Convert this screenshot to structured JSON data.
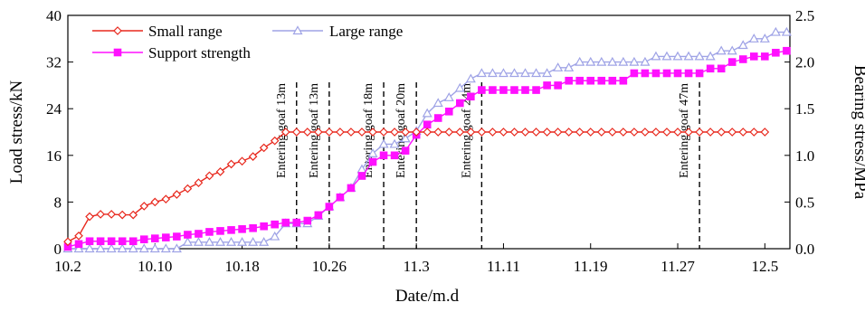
{
  "chart_data": {
    "type": "line",
    "xlabel": "Date/m.d",
    "ylabel_left": "Load stress/kN",
    "ylabel_right": "Bearing stress/MPa",
    "x_start": "10.2",
    "x_end": "12.5",
    "x_tick_labels": [
      "10.2",
      "10.10",
      "10.18",
      "10.26",
      "11.3",
      "11.11",
      "11.19",
      "11.27",
      "12.5"
    ],
    "x_tick_days": [
      0,
      8,
      16,
      24,
      32,
      40,
      48,
      56,
      64
    ],
    "ylim_left": [
      0,
      40
    ],
    "yticks_left": [
      "0",
      "8",
      "16",
      "24",
      "32",
      "40"
    ],
    "ylim_right": [
      0,
      2.5
    ],
    "yticks_right": [
      "0.0",
      "0.5",
      "1.0",
      "1.5",
      "2.0",
      "2.5"
    ],
    "grid": false,
    "legend_position": "top-left",
    "series": [
      {
        "name": "Small range",
        "axis": "left",
        "color": "#e8291e",
        "marker": "diamond-open",
        "points": [
          [
            0,
            1.2
          ],
          [
            1,
            2.2
          ],
          [
            2,
            5.5
          ],
          [
            3,
            5.9
          ],
          [
            4,
            5.9
          ],
          [
            5,
            5.8
          ],
          [
            6,
            5.8
          ],
          [
            7,
            7.3
          ],
          [
            8,
            8.0
          ],
          [
            9,
            8.5
          ],
          [
            10,
            9.3
          ],
          [
            11,
            10.3
          ],
          [
            12,
            11.3
          ],
          [
            13,
            12.5
          ],
          [
            14,
            13.2
          ],
          [
            15,
            14.5
          ],
          [
            16,
            15.0
          ],
          [
            17,
            15.8
          ],
          [
            18,
            17.3
          ],
          [
            19,
            18.5
          ],
          [
            20,
            20
          ],
          [
            21,
            20
          ],
          [
            22,
            20
          ],
          [
            23,
            20
          ],
          [
            24,
            20
          ],
          [
            25,
            20
          ],
          [
            26,
            20
          ],
          [
            27,
            20
          ],
          [
            28,
            20
          ],
          [
            29,
            20
          ],
          [
            30,
            20
          ],
          [
            31,
            20
          ],
          [
            32,
            20
          ],
          [
            33,
            20
          ],
          [
            34,
            20
          ],
          [
            35,
            20
          ],
          [
            36,
            20
          ],
          [
            37,
            20
          ],
          [
            38,
            20
          ],
          [
            39,
            20
          ],
          [
            40,
            20
          ],
          [
            41,
            20
          ],
          [
            42,
            20
          ],
          [
            43,
            20
          ],
          [
            44,
            20
          ],
          [
            45,
            20
          ],
          [
            46,
            20
          ],
          [
            47,
            20
          ],
          [
            48,
            20
          ],
          [
            49,
            20
          ],
          [
            50,
            20
          ],
          [
            51,
            20
          ],
          [
            52,
            20
          ],
          [
            53,
            20
          ],
          [
            54,
            20
          ],
          [
            55,
            20
          ],
          [
            56,
            20
          ],
          [
            57,
            20
          ],
          [
            58,
            20
          ],
          [
            59,
            20
          ],
          [
            60,
            20
          ],
          [
            61,
            20
          ],
          [
            62,
            20
          ],
          [
            63,
            20
          ],
          [
            64,
            20
          ]
        ]
      },
      {
        "name": "Large range",
        "axis": "right",
        "color": "#9fa3e6",
        "marker": "triangle-open",
        "points": [
          [
            0,
            0.0
          ],
          [
            1,
            0.0
          ],
          [
            2,
            0.0
          ],
          [
            3,
            0.0
          ],
          [
            4,
            0.0
          ],
          [
            5,
            0.0
          ],
          [
            6,
            0.0
          ],
          [
            7,
            0.0
          ],
          [
            8,
            0.0
          ],
          [
            9,
            0.0
          ],
          [
            10,
            0.0
          ],
          [
            11,
            0.07
          ],
          [
            12,
            0.07
          ],
          [
            13,
            0.07
          ],
          [
            14,
            0.07
          ],
          [
            15,
            0.07
          ],
          [
            16,
            0.07
          ],
          [
            17,
            0.07
          ],
          [
            18,
            0.07
          ],
          [
            19,
            0.13
          ],
          [
            20,
            0.27
          ],
          [
            21,
            0.27
          ],
          [
            22,
            0.27
          ],
          [
            23,
            0.35
          ],
          [
            24,
            0.45
          ],
          [
            25,
            0.55
          ],
          [
            26,
            0.65
          ],
          [
            27,
            0.85
          ],
          [
            28,
            1.02
          ],
          [
            29,
            1.12
          ],
          [
            30,
            1.12
          ],
          [
            31,
            1.18
          ],
          [
            32,
            1.26
          ],
          [
            33,
            1.45
          ],
          [
            34,
            1.56
          ],
          [
            35,
            1.62
          ],
          [
            36,
            1.72
          ],
          [
            37,
            1.82
          ],
          [
            38,
            1.88
          ],
          [
            39,
            1.88
          ],
          [
            40,
            1.88
          ],
          [
            41,
            1.88
          ],
          [
            42,
            1.88
          ],
          [
            43,
            1.88
          ],
          [
            44,
            1.88
          ],
          [
            45,
            1.94
          ],
          [
            46,
            1.94
          ],
          [
            47,
            2.0
          ],
          [
            48,
            2.0
          ],
          [
            49,
            2.0
          ],
          [
            50,
            2.0
          ],
          [
            51,
            2.0
          ],
          [
            52,
            2.0
          ],
          [
            53,
            2.0
          ],
          [
            54,
            2.06
          ],
          [
            55,
            2.06
          ],
          [
            56,
            2.06
          ],
          [
            57,
            2.06
          ],
          [
            58,
            2.06
          ],
          [
            59,
            2.06
          ],
          [
            60,
            2.12
          ],
          [
            61,
            2.12
          ],
          [
            62,
            2.18
          ],
          [
            63,
            2.25
          ],
          [
            64,
            2.25
          ],
          [
            65,
            2.32
          ],
          [
            66,
            2.32
          ]
        ]
      },
      {
        "name": "Support strength",
        "axis": "right",
        "color": "#ff10ff",
        "marker": "square-filled",
        "points": [
          [
            0,
            0.02
          ],
          [
            1,
            0.05
          ],
          [
            2,
            0.08
          ],
          [
            3,
            0.08
          ],
          [
            4,
            0.08
          ],
          [
            5,
            0.08
          ],
          [
            6,
            0.08
          ],
          [
            7,
            0.1
          ],
          [
            8,
            0.11
          ],
          [
            9,
            0.12
          ],
          [
            10,
            0.13
          ],
          [
            11,
            0.15
          ],
          [
            12,
            0.16
          ],
          [
            13,
            0.18
          ],
          [
            14,
            0.19
          ],
          [
            15,
            0.2
          ],
          [
            16,
            0.21
          ],
          [
            17,
            0.22
          ],
          [
            18,
            0.24
          ],
          [
            19,
            0.26
          ],
          [
            20,
            0.28
          ],
          [
            21,
            0.28
          ],
          [
            22,
            0.3
          ],
          [
            23,
            0.36
          ],
          [
            24,
            0.45
          ],
          [
            25,
            0.55
          ],
          [
            26,
            0.65
          ],
          [
            27,
            0.78
          ],
          [
            28,
            0.93
          ],
          [
            29,
            1.0
          ],
          [
            30,
            1.0
          ],
          [
            31,
            1.05
          ],
          [
            32,
            1.22
          ],
          [
            33,
            1.33
          ],
          [
            34,
            1.4
          ],
          [
            35,
            1.47
          ],
          [
            36,
            1.56
          ],
          [
            37,
            1.63
          ],
          [
            38,
            1.7
          ],
          [
            39,
            1.7
          ],
          [
            40,
            1.7
          ],
          [
            41,
            1.7
          ],
          [
            42,
            1.7
          ],
          [
            43,
            1.7
          ],
          [
            44,
            1.75
          ],
          [
            45,
            1.75
          ],
          [
            46,
            1.8
          ],
          [
            47,
            1.8
          ],
          [
            48,
            1.8
          ],
          [
            49,
            1.8
          ],
          [
            50,
            1.8
          ],
          [
            51,
            1.8
          ],
          [
            52,
            1.88
          ],
          [
            53,
            1.88
          ],
          [
            54,
            1.88
          ],
          [
            55,
            1.88
          ],
          [
            56,
            1.88
          ],
          [
            57,
            1.88
          ],
          [
            58,
            1.88
          ],
          [
            59,
            1.93
          ],
          [
            60,
            1.93
          ],
          [
            61,
            2.0
          ],
          [
            62,
            2.03
          ],
          [
            63,
            2.06
          ],
          [
            64,
            2.06
          ],
          [
            65,
            2.1
          ],
          [
            66,
            2.12
          ]
        ]
      }
    ],
    "annotations": [
      {
        "label": "Entering goaf 13m",
        "day": 21
      },
      {
        "label": "Entering goaf 13m",
        "day": 24
      },
      {
        "label": "Entering goaf 18m",
        "day": 29
      },
      {
        "label": "Entering goaf 20m",
        "day": 32
      },
      {
        "label": "Entering goaf 24m",
        "day": 38
      },
      {
        "label": "Entering goaf 47m",
        "day": 58
      }
    ]
  }
}
